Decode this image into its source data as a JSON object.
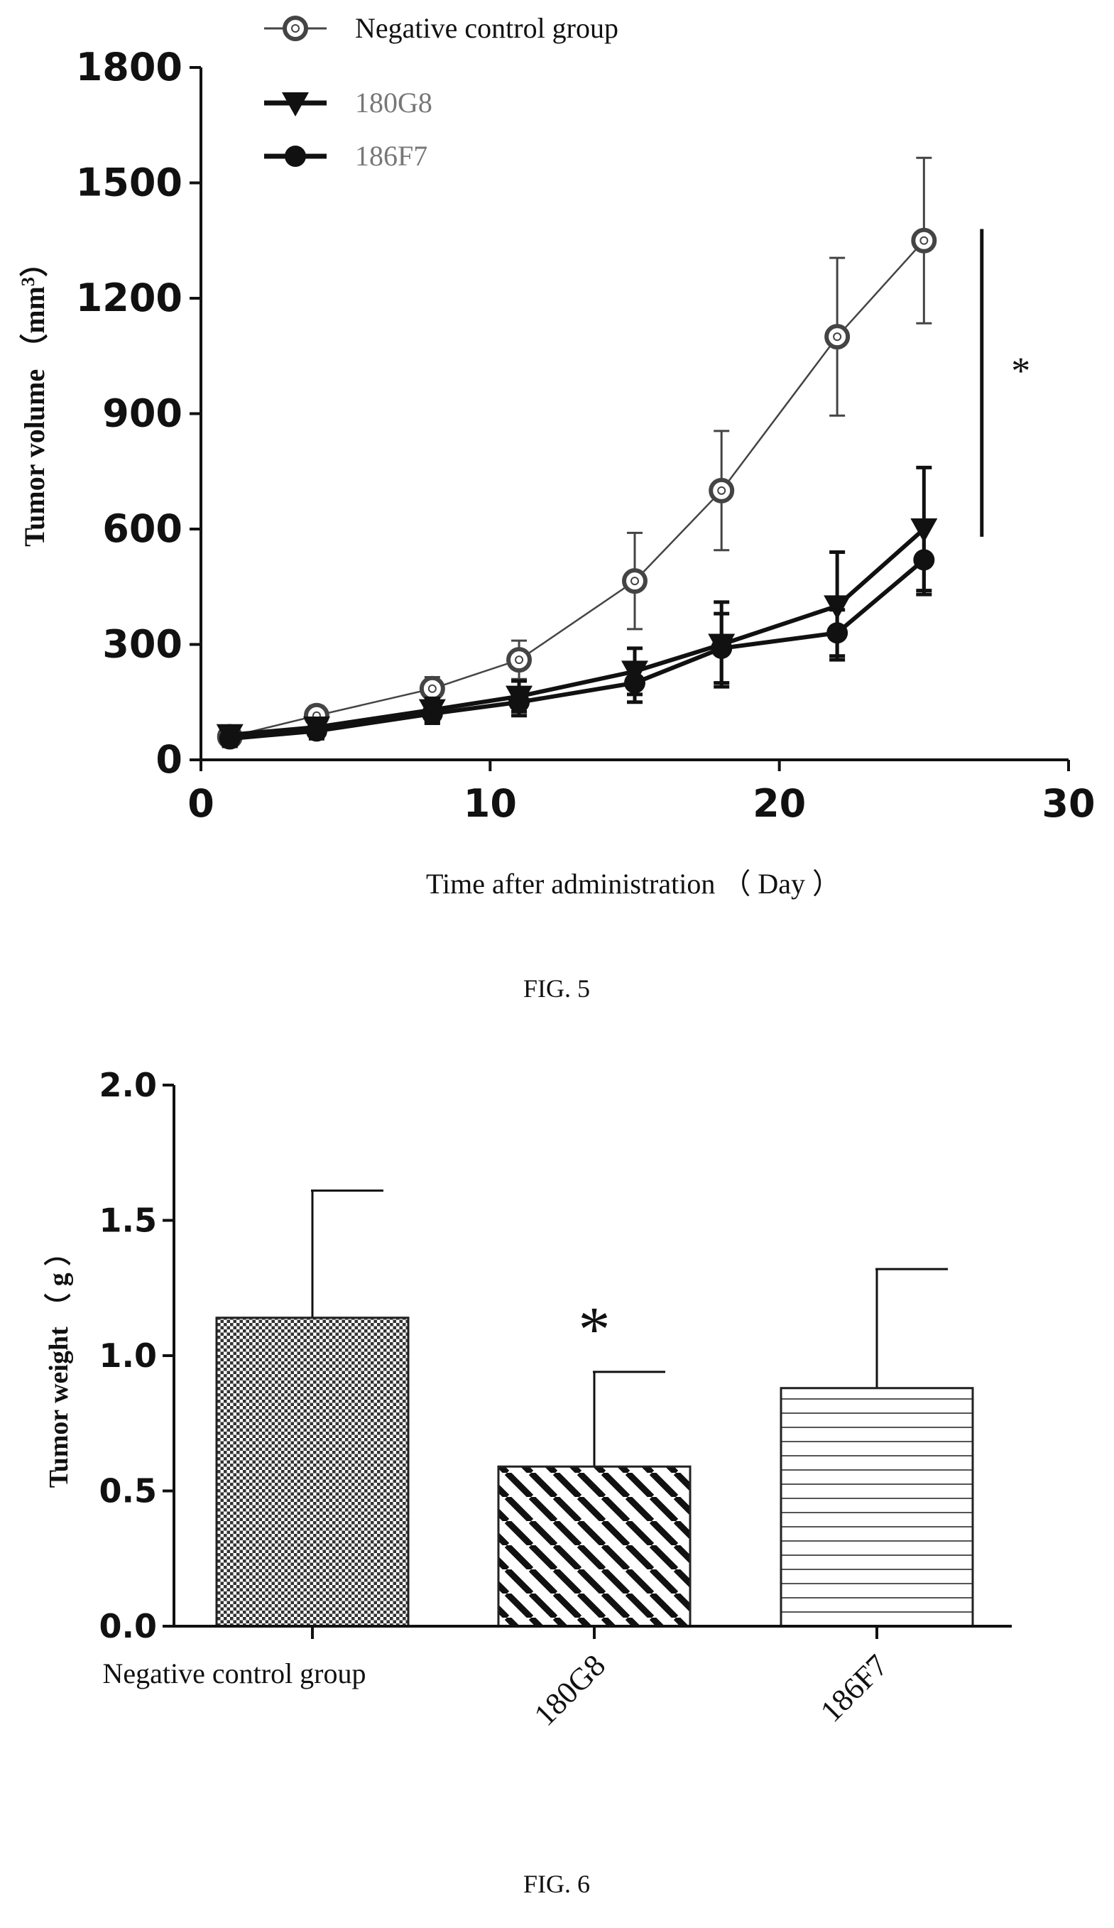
{
  "figures": [
    {
      "caption": "FIG. 5"
    },
    {
      "caption": "FIG. 6"
    }
  ],
  "chart_data": [
    {
      "type": "line",
      "xlabel": "Time after administration （ Day ）",
      "ylabel": "Tumor volume （mm³）",
      "ylabel_parts": {
        "main": "Tumor volume （mm",
        "sup": "3",
        "close": "）"
      },
      "xlim": [
        0,
        30
      ],
      "ylim": [
        0,
        1800
      ],
      "xticks": [
        "0",
        "10",
        "20",
        "30"
      ],
      "yticks": [
        "0",
        "300",
        "600",
        "900",
        "1200",
        "1500",
        "1800"
      ],
      "legend_position": "top-left",
      "x": [
        1,
        4,
        8,
        11,
        15,
        18,
        22,
        25
      ],
      "series": [
        {
          "name": "Negative control group",
          "marker": "open-circle",
          "color": "#444444",
          "values": [
            60,
            115,
            185,
            260,
            465,
            700,
            1100,
            1350
          ],
          "errors": [
            25,
            25,
            30,
            50,
            125,
            155,
            205,
            215
          ]
        },
        {
          "name": "180G8",
          "marker": "triangle-down",
          "color": "#111111",
          "values": [
            65,
            85,
            130,
            165,
            230,
            300,
            400,
            600
          ],
          "errors": [
            20,
            20,
            30,
            40,
            60,
            110,
            140,
            160
          ]
        },
        {
          "name": "186F7",
          "marker": "filled-circle",
          "color": "#111111",
          "values": [
            55,
            75,
            120,
            150,
            200,
            290,
            330,
            520
          ],
          "errors": [
            20,
            20,
            25,
            35,
            50,
            90,
            60,
            90
          ]
        }
      ],
      "annotations": [
        {
          "text": "*",
          "y_range": [
            580,
            1380
          ],
          "x_position": 27
        }
      ]
    },
    {
      "type": "bar",
      "ylabel": "Tumor weight （ g ）",
      "ylim": [
        0,
        2.0
      ],
      "yticks": [
        "0.0",
        "0.5",
        "1.0",
        "1.5",
        "2.0"
      ],
      "categories": [
        "Negative control group",
        "180G8",
        "186F7"
      ],
      "values": [
        1.14,
        0.59,
        0.88
      ],
      "errors": [
        0.47,
        0.35,
        0.44
      ],
      "patterns": [
        "checkered",
        "diagonal",
        "horizontal"
      ],
      "annotations": [
        {
          "text": "*",
          "category": "180G8"
        }
      ]
    }
  ]
}
